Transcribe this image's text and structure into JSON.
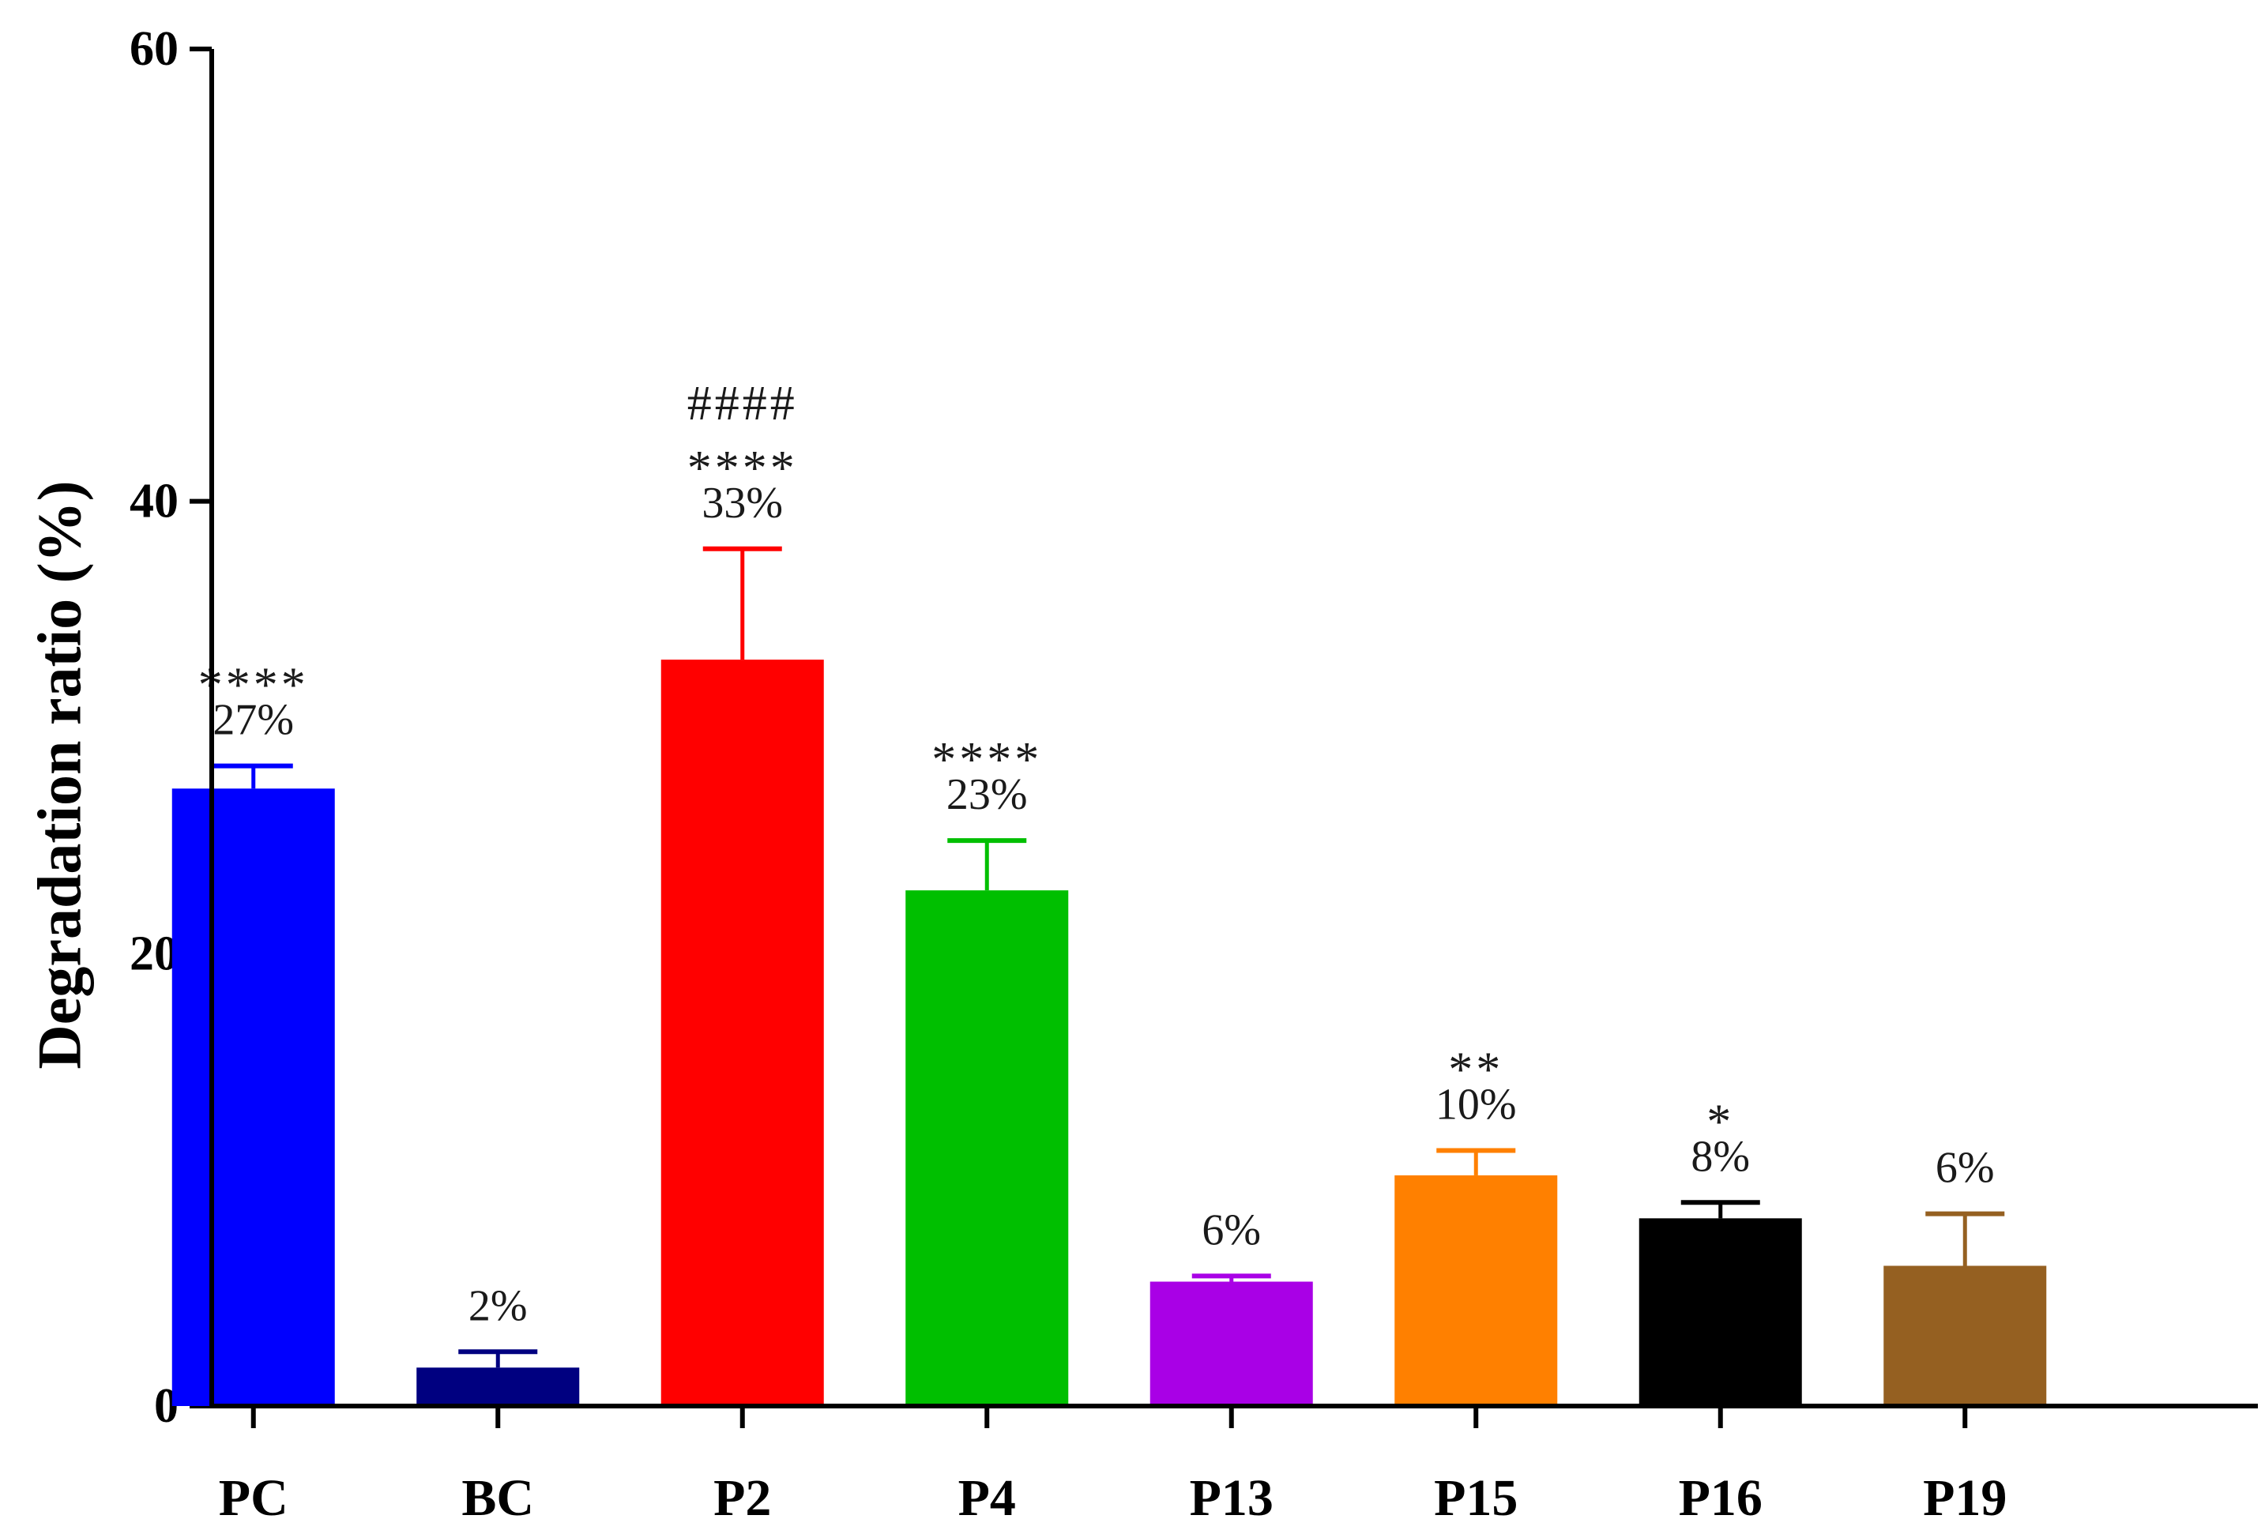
{
  "chart_data": {
    "type": "bar",
    "title": "",
    "xlabel": "",
    "ylabel": "Degradation ratio (%)",
    "ylim": [
      0,
      60
    ],
    "yticks": [
      0,
      20,
      40,
      60
    ],
    "grid": false,
    "categories": [
      "PC",
      "BC",
      "P2",
      "P4",
      "P13",
      "P15",
      "P16",
      "P19"
    ],
    "values": [
      27.3,
      1.7,
      33.0,
      22.8,
      5.5,
      10.2,
      8.3,
      6.2
    ],
    "errors": [
      1.0,
      0.7,
      4.9,
      2.2,
      0.25,
      1.1,
      0.7,
      2.3
    ],
    "value_labels": [
      "27%",
      "2%",
      "33%",
      "23%",
      "6%",
      "10%",
      "8%",
      "6%"
    ],
    "significance": [
      "****",
      "",
      "****",
      "****",
      "",
      "**",
      "*",
      ""
    ],
    "significance_secondary": [
      "",
      "",
      "####",
      "",
      "",
      "",
      "",
      ""
    ],
    "colors": [
      "#0000ff",
      "#000080",
      "#ff0000",
      "#00bf00",
      "#a900e6",
      "#ff8000",
      "#000000",
      "#956021"
    ]
  }
}
